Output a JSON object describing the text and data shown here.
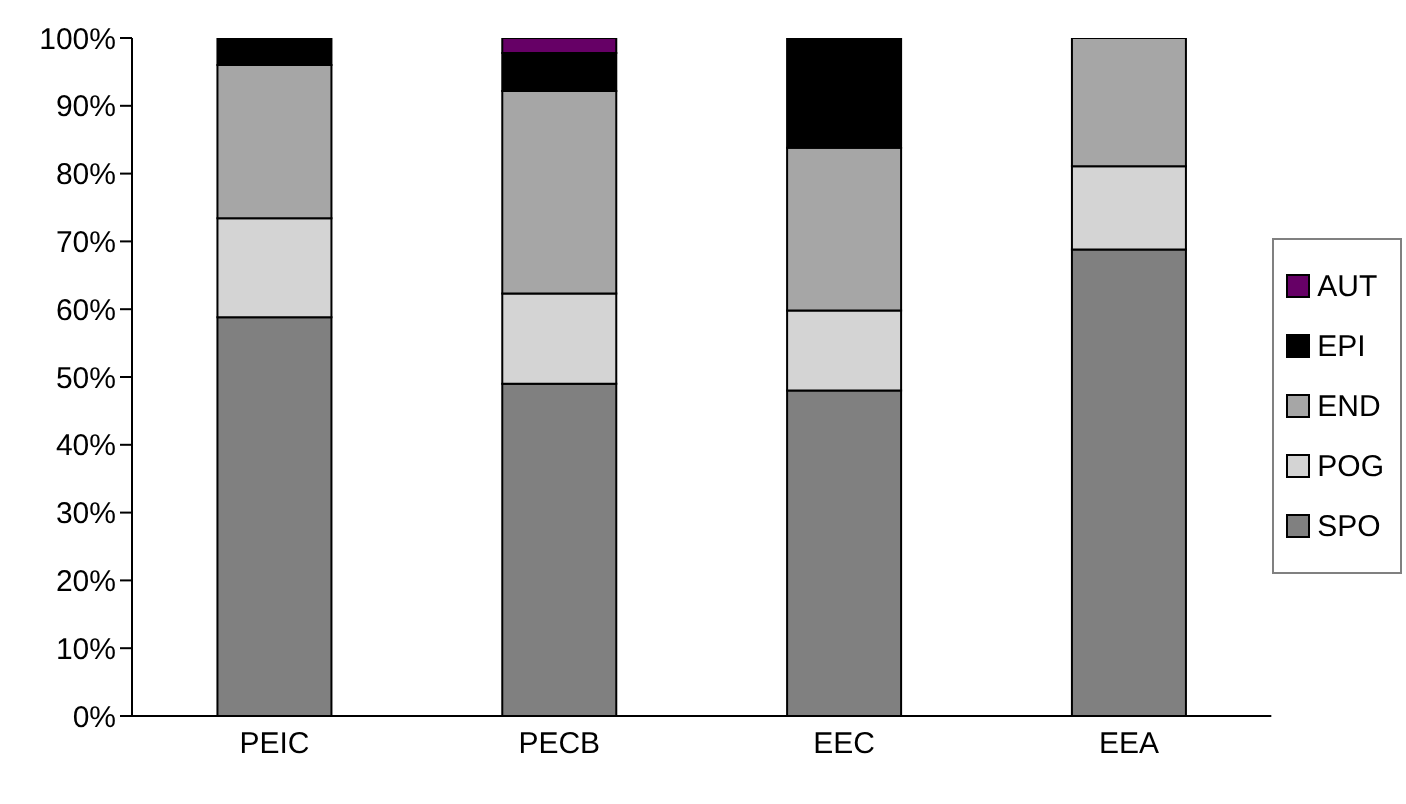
{
  "chart_data": {
    "type": "bar",
    "stacked": true,
    "categories": [
      "PEIC",
      "PECB",
      "EEC",
      "EEA"
    ],
    "series": [
      {
        "name": "SPO",
        "color": "#808080",
        "values": [
          58.8,
          49.0,
          48.0,
          68.8
        ]
      },
      {
        "name": "POG",
        "color": "#d4d4d4",
        "values": [
          14.6,
          13.3,
          11.8,
          12.3
        ]
      },
      {
        "name": "END",
        "color": "#a6a6a6",
        "values": [
          22.6,
          29.9,
          24.0,
          18.9
        ]
      },
      {
        "name": "EPI",
        "color": "#000000",
        "values": [
          4.0,
          5.6,
          16.2,
          0
        ]
      },
      {
        "name": "AUT",
        "color": "#660066",
        "values": [
          0,
          2.2,
          0,
          0
        ]
      }
    ],
    "ylim": [
      0,
      100
    ],
    "yticks": [
      {
        "value": 0,
        "label": "0%"
      },
      {
        "value": 10,
        "label": "10%"
      },
      {
        "value": 20,
        "label": "20%"
      },
      {
        "value": 30,
        "label": "30%"
      },
      {
        "value": 40,
        "label": "40%"
      },
      {
        "value": 50,
        "label": "50%"
      },
      {
        "value": 60,
        "label": "60%"
      },
      {
        "value": 70,
        "label": "70%"
      },
      {
        "value": 80,
        "label": "80%"
      },
      {
        "value": 90,
        "label": "90%"
      },
      {
        "value": 100,
        "label": "100%"
      }
    ],
    "grid": false,
    "legend": "right"
  }
}
